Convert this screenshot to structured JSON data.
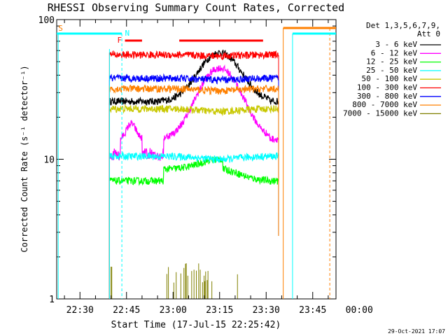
{
  "chart_data": {
    "type": "line",
    "title": "RHESSI Observing Summary Count Rates, Corrected",
    "xlabel": "Start Time (17-Jul-15 22:25:42)",
    "ylabel": "Corrected Count Rate (s⁻¹ detector⁻¹)",
    "y_scale": "log",
    "ylim": [
      1,
      100
    ],
    "x_minutes_range": [
      22.5,
      112.5
    ],
    "x_ticks": [
      {
        "label": "22:30",
        "min": 30
      },
      {
        "label": "22:45",
        "min": 45
      },
      {
        "label": "23:00",
        "min": 60
      },
      {
        "label": "23:15",
        "min": 75
      },
      {
        "label": "23:30",
        "min": 90
      },
      {
        "label": "23:45",
        "min": 105
      },
      {
        "label": "00:00",
        "min": 120
      }
    ],
    "y_ticks": [
      {
        "label": "1",
        "value": 1
      },
      {
        "label": "10",
        "value": 10
      },
      {
        "label": "100",
        "value": 100
      }
    ],
    "legend_header": [
      "Det 1,3,5,6,7,9,",
      "Att 0"
    ],
    "legend_placement": "top-right outside",
    "series": [
      {
        "name": "3 - 6 keV",
        "color": "#000000",
        "base": 26,
        "flare": 58
      },
      {
        "name": "6 - 12 keV",
        "color": "#ff00ff",
        "base": 14,
        "flare": 45
      },
      {
        "name": "12 - 25 keV",
        "color": "#00ff00",
        "base": 7,
        "flare": 8.5
      },
      {
        "name": "25 - 50 keV",
        "color": "#00ffff",
        "base": 10.5,
        "flare": 10
      },
      {
        "name": "50 - 100 keV",
        "color": "#c8c800",
        "base": 23,
        "flare": 22
      },
      {
        "name": "100 - 300 keV",
        "color": "#ff0000",
        "base": 56,
        "flare": 55
      },
      {
        "name": "300 - 800 keV",
        "color": "#0000ff",
        "base": 38,
        "flare": 37
      },
      {
        "name": "800 - 7000 keV",
        "color": "#ff8000",
        "base": 32,
        "flare": 31
      },
      {
        "name": "7000 - 15000 keV",
        "color": "#808000",
        "base": 1,
        "flare": 1.8
      }
    ],
    "annotations": [
      {
        "label": "S",
        "color": "#ff8000"
      },
      {
        "label": "N",
        "color": "#00ffff"
      },
      {
        "label": "F",
        "color": "#ff0000"
      }
    ],
    "data_range_minutes": [
      39.5,
      94
    ]
  },
  "footer": {
    "timestamp": "29-Oct-2021 17:07"
  }
}
